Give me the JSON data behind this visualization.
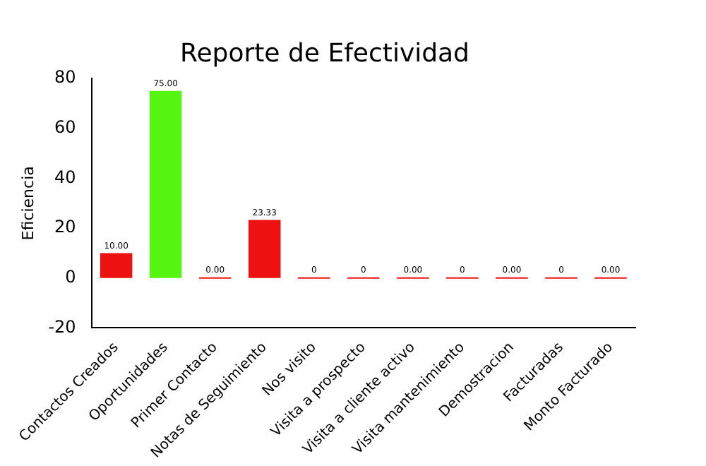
{
  "chart_data": {
    "type": "bar",
    "title": "Reporte de Efectividad",
    "ylabel": "Eficiencia",
    "categories": [
      "Contactos Creados",
      "Oportunidades",
      "Primer Contacto",
      "Notas de Seguimiento",
      "Nos visito",
      "Visita a prospecto",
      "Visita a cliente activo",
      "Visita mantenimiento",
      "Demostracion",
      "Facturadas",
      "Monto Facturado"
    ],
    "values": [
      10,
      75,
      0,
      23.33,
      0,
      0,
      0,
      0,
      0,
      0,
      0
    ],
    "colors": [
      "#ee1111",
      "#55f511",
      "#ee1111",
      "#ee1111",
      "#ee1111",
      "#ee1111",
      "#ee1111",
      "#ee1111",
      "#ee1111",
      "#ee1111",
      "#ee1111"
    ],
    "value_labels": [
      "10.00",
      "75.00",
      "0.00",
      "23.33",
      "0",
      "0",
      "0.00",
      "0",
      "0.00",
      "0",
      "0.00"
    ],
    "ylim": [
      -20,
      80
    ],
    "yticks": [
      -20,
      0,
      20,
      40,
      60,
      80
    ],
    "legend": false
  }
}
